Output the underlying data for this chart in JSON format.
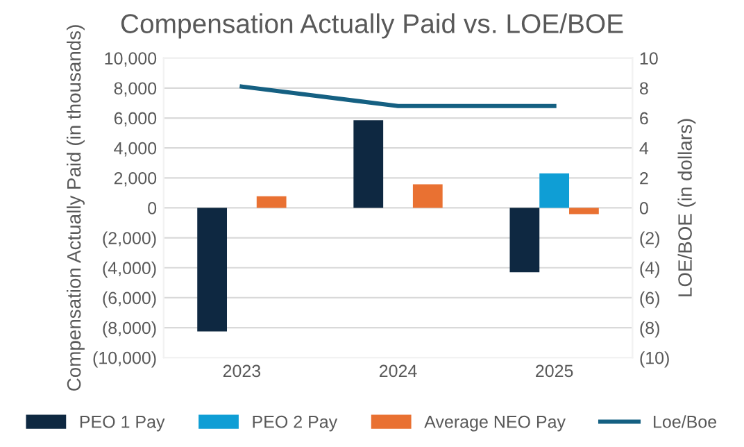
{
  "chart_data": {
    "type": "bar",
    "title": "Compensation Actually Paid vs. LOE/BOE",
    "ylabel": "Compensation Actually Paid (in thousands)",
    "y2label": "LOE/BOE (in dollars)",
    "categories": [
      "2023",
      "2024",
      "2025"
    ],
    "series": [
      {
        "name": "PEO 1 Pay",
        "color": "#0e2841",
        "values": [
          -8250,
          5850,
          -4300
        ]
      },
      {
        "name": "PEO 2 Pay",
        "color": "#0f9ed5",
        "values": [
          null,
          null,
          2300
        ]
      },
      {
        "name": "Average NEO Pay",
        "color": "#e97132",
        "values": [
          770,
          1570,
          -420
        ]
      },
      {
        "name": "Loe/Boe",
        "type": "line",
        "axis": "y2",
        "color": "#156082",
        "values": [
          8.1,
          6.8,
          6.8
        ]
      }
    ],
    "ylim": [
      -10000,
      10000
    ],
    "yticks": [
      {
        "value": -10000,
        "label": "(10,000)"
      },
      {
        "value": -8000,
        "label": "(8,000)"
      },
      {
        "value": -6000,
        "label": "(6,000)"
      },
      {
        "value": -4000,
        "label": "(4,000)"
      },
      {
        "value": -2000,
        "label": "(2,000)"
      },
      0,
      {
        "value": 2000,
        "label": "2,000"
      },
      {
        "value": 4000,
        "label": "4,000"
      },
      {
        "value": 6000,
        "label": "6,000"
      },
      {
        "value": 8000,
        "label": "8,000"
      },
      {
        "value": 10000,
        "label": "10,000"
      }
    ],
    "y2lim": [
      -10,
      10
    ],
    "y2ticks": [
      {
        "value": -10,
        "label": "(10)"
      },
      {
        "value": -8,
        "label": "(8)"
      },
      {
        "value": -6,
        "label": "(6)"
      },
      {
        "value": -4,
        "label": "(4)"
      },
      {
        "value": -2,
        "label": "(2)"
      },
      0,
      2,
      4,
      6,
      8,
      10
    ],
    "grid": "y",
    "legend": "bottom"
  }
}
